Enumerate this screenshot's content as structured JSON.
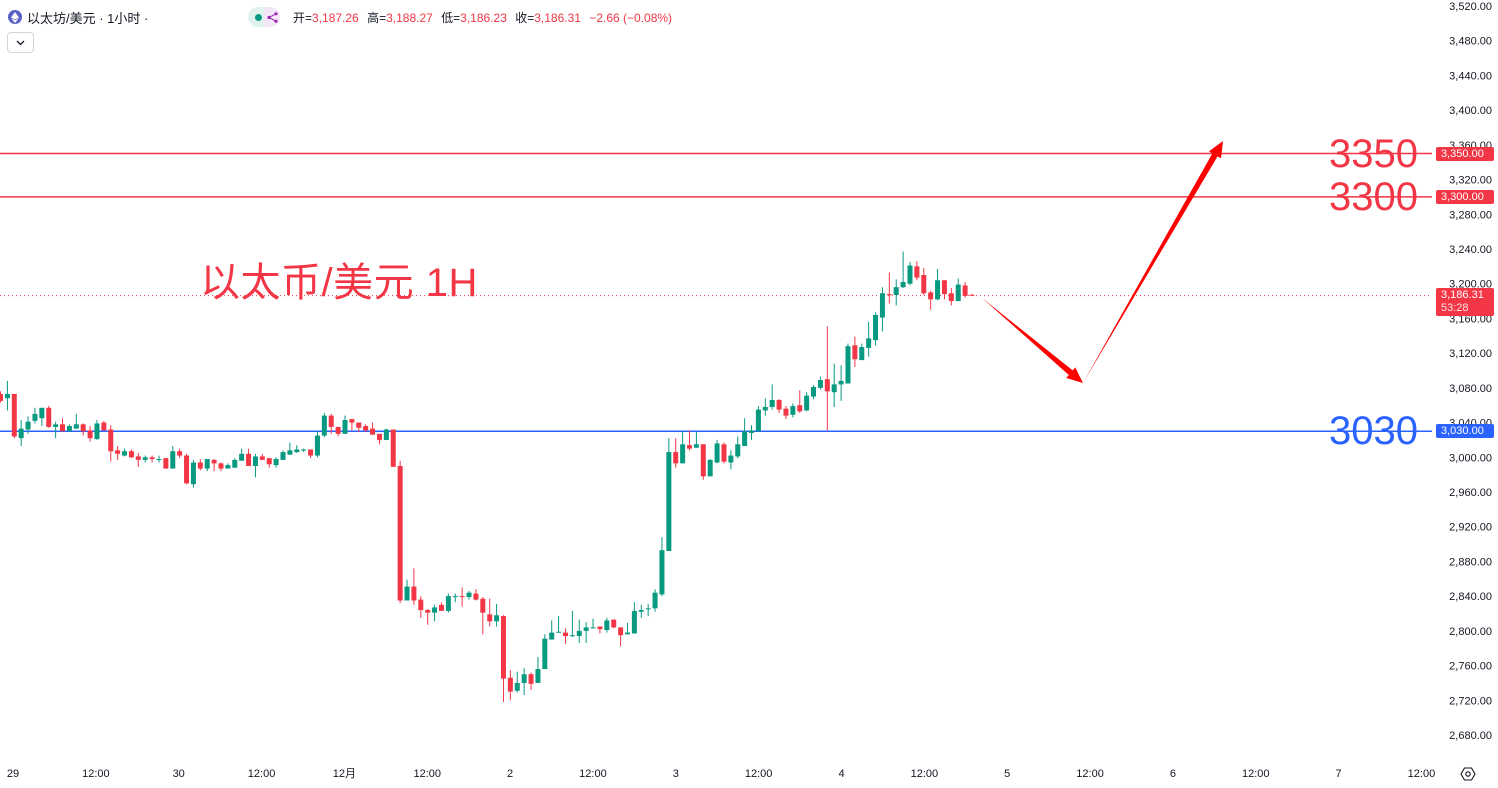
{
  "header": {
    "symbol_title": "以太坊/美元 · 1小时 ·",
    "icon": "ethereum-icon",
    "ohlc": {
      "open_label": "开=",
      "open": "3,187.26",
      "high_label": "高=",
      "high": "3,188.27",
      "low_label": "低=",
      "low": "3,186.23",
      "close_label": "收=",
      "close": "3,186.31",
      "change": "−2.66 (−0.08%)"
    },
    "dropdown_icon": "chevron-down-icon"
  },
  "annotation_title": "以太币/美元 1H",
  "levels": [
    {
      "price": 3350,
      "label": "3350",
      "tag": "3,350.00",
      "color": "#f23645"
    },
    {
      "price": 3300,
      "label": "3300",
      "tag": "3,300.00",
      "color": "#f23645"
    },
    {
      "price": 3030,
      "label": "3030",
      "tag": "3,030.00",
      "color": "#2962ff"
    }
  ],
  "current_price": {
    "price": 3186.31,
    "tag": "3,186.31",
    "countdown": "53:28"
  },
  "colors": {
    "up": "#089981",
    "down": "#f23645",
    "arrow": "#ff0000"
  },
  "chart_data": {
    "type": "candlestick",
    "y_axis_ticks": [
      "3,520.00",
      "3,480.00",
      "3,440.00",
      "3,400.00",
      "3,360.00",
      "3,320.00",
      "3,280.00",
      "3,240.00",
      "3,200.00",
      "3,160.00",
      "3,120.00",
      "3,080.00",
      "3,040.00",
      "3,000.00",
      "2,960.00",
      "2,920.00",
      "2,880.00",
      "2,840.00",
      "2,800.00",
      "2,760.00",
      "2,720.00",
      "2,680.00"
    ],
    "ylim": [
      2680,
      3520
    ],
    "x_axis_ticks": [
      "29",
      "12:00",
      "30",
      "12:00",
      "12月",
      "12:00",
      "2",
      "12:00",
      "3",
      "12:00",
      "4",
      "12:00",
      "5",
      "12:00",
      "6",
      "12:00",
      "7",
      "12:00"
    ],
    "interval": "1小时",
    "ohlc": [
      [
        3073,
        3076,
        3063,
        3065
      ],
      [
        3068,
        3088,
        3054,
        3073
      ],
      [
        3073,
        3073,
        3022,
        3024
      ],
      [
        3022,
        3043,
        3013,
        3033
      ],
      [
        3032,
        3047,
        3027,
        3041
      ],
      [
        3042,
        3057,
        3039,
        3050
      ],
      [
        3045,
        3057,
        3036,
        3057
      ],
      [
        3057,
        3059,
        3034,
        3035
      ],
      [
        3035,
        3041,
        3022,
        3038
      ],
      [
        3038,
        3045,
        3030,
        3030
      ],
      [
        3030,
        3038,
        3030,
        3036
      ],
      [
        3033,
        3050,
        3033,
        3038
      ],
      [
        3038,
        3039,
        3025,
        3030
      ],
      [
        3031,
        3036,
        3018,
        3022
      ],
      [
        3021,
        3043,
        3020,
        3039
      ],
      [
        3040,
        3042,
        3031,
        3031
      ],
      [
        3032,
        3037,
        2995,
        3007
      ],
      [
        3008,
        3013,
        2997,
        3004
      ],
      [
        3002,
        3010,
        3001,
        3007
      ],
      [
        3007,
        3009,
        2999,
        3000
      ],
      [
        3001,
        3005,
        2989,
        2997
      ],
      [
        2997,
        3002,
        2994,
        3000
      ],
      [
        3000,
        3002,
        2994,
        2998
      ],
      [
        2997,
        3002,
        2994,
        2998
      ],
      [
        2999,
        2999,
        2987,
        2987
      ],
      [
        2987,
        3013,
        2987,
        3007
      ],
      [
        3007,
        3010,
        2999,
        3002
      ],
      [
        3002,
        3004,
        2969,
        2970
      ],
      [
        2969,
        2997,
        2965,
        2994
      ],
      [
        2994,
        2998,
        2985,
        2987
      ],
      [
        2987,
        2998,
        2984,
        2998
      ],
      [
        2997,
        2998,
        2984,
        2993
      ],
      [
        2993,
        2994,
        2984,
        2987
      ],
      [
        2987,
        2993,
        2987,
        2991
      ],
      [
        2988,
        2999,
        2988,
        2997
      ],
      [
        2996,
        3010,
        2996,
        3004
      ],
      [
        3004,
        3010,
        2990,
        2990
      ],
      [
        2990,
        3004,
        2977,
        3001
      ],
      [
        3001,
        3004,
        2997,
        2997
      ],
      [
        2999,
        2999,
        2988,
        2992
      ],
      [
        2991,
        3000,
        2988,
        2998
      ],
      [
        2997,
        3008,
        2997,
        3006
      ],
      [
        3003,
        3017,
        3003,
        3008
      ],
      [
        3006,
        3014,
        3005,
        3009
      ],
      [
        3008,
        3010,
        3006,
        3009
      ],
      [
        3009,
        3009,
        2999,
        3002
      ],
      [
        3002,
        3030,
        3000,
        3025
      ],
      [
        3025,
        3051,
        3023,
        3048
      ],
      [
        3048,
        3050,
        3027,
        3035
      ],
      [
        3035,
        3035,
        3024,
        3027
      ],
      [
        3027,
        3048,
        3027,
        3043
      ],
      [
        3044,
        3044,
        3031,
        3040
      ],
      [
        3040,
        3040,
        3029,
        3034
      ],
      [
        3036,
        3038,
        3029,
        3031
      ],
      [
        3033,
        3040,
        3026,
        3026
      ],
      [
        3027,
        3027,
        3015,
        3020
      ],
      [
        3020,
        3033,
        3020,
        3032
      ],
      [
        3032,
        3032,
        2989,
        2989
      ],
      [
        2990,
        2996,
        2832,
        2835
      ],
      [
        2835,
        2859,
        2835,
        2851
      ],
      [
        2851,
        2872,
        2830,
        2835
      ],
      [
        2836,
        2840,
        2815,
        2824
      ],
      [
        2824,
        2825,
        2807,
        2821
      ],
      [
        2821,
        2830,
        2811,
        2827
      ],
      [
        2830,
        2833,
        2823,
        2823
      ],
      [
        2823,
        2843,
        2821,
        2840
      ],
      [
        2839,
        2843,
        2833,
        2840
      ],
      [
        2840,
        2850,
        2828,
        2839
      ],
      [
        2839,
        2846,
        2836,
        2844
      ],
      [
        2843,
        2848,
        2835,
        2836
      ],
      [
        2837,
        2839,
        2796,
        2821
      ],
      [
        2819,
        2837,
        2805,
        2811
      ],
      [
        2811,
        2831,
        2805,
        2818
      ],
      [
        2817,
        2818,
        2718,
        2745
      ],
      [
        2746,
        2755,
        2720,
        2730
      ],
      [
        2731,
        2753,
        2729,
        2740
      ],
      [
        2740,
        2757,
        2726,
        2750
      ],
      [
        2750,
        2752,
        2732,
        2739
      ],
      [
        2740,
        2770,
        2740,
        2756
      ],
      [
        2756,
        2796,
        2756,
        2791
      ],
      [
        2790,
        2812,
        2790,
        2798
      ],
      [
        2798,
        2817,
        2798,
        2799
      ],
      [
        2798,
        2803,
        2785,
        2794
      ],
      [
        2794,
        2823,
        2793,
        2795
      ],
      [
        2794,
        2813,
        2786,
        2800
      ],
      [
        2800,
        2810,
        2786,
        2804
      ],
      [
        2803,
        2814,
        2803,
        2804
      ],
      [
        2805,
        2805,
        2797,
        2802
      ],
      [
        2801,
        2815,
        2798,
        2812
      ],
      [
        2813,
        2813,
        2803,
        2804
      ],
      [
        2804,
        2804,
        2782,
        2795
      ],
      [
        2796,
        2809,
        2796,
        2798
      ],
      [
        2797,
        2833,
        2797,
        2823
      ],
      [
        2822,
        2830,
        2815,
        2824
      ],
      [
        2825,
        2831,
        2817,
        2826
      ],
      [
        2826,
        2848,
        2822,
        2844
      ],
      [
        2842,
        2908,
        2840,
        2893
      ],
      [
        2892,
        3022,
        2892,
        3006
      ],
      [
        3006,
        3022,
        2988,
        2993
      ],
      [
        2993,
        3030,
        2993,
        3015
      ],
      [
        3014,
        3031,
        3008,
        3010
      ],
      [
        3011,
        3029,
        3011,
        3015
      ],
      [
        3015,
        3015,
        2974,
        2978
      ],
      [
        2978,
        2998,
        2978,
        2997
      ],
      [
        2994,
        3020,
        2993,
        3016
      ],
      [
        3015,
        3017,
        2993,
        2995
      ],
      [
        2994,
        3008,
        2986,
        3002
      ],
      [
        3001,
        3024,
        2999,
        3015
      ],
      [
        3013,
        3045,
        3013,
        3030
      ],
      [
        3028,
        3037,
        3020,
        3031
      ],
      [
        3030,
        3059,
        3030,
        3055
      ],
      [
        3054,
        3068,
        3048,
        3058
      ],
      [
        3058,
        3084,
        3055,
        3066
      ],
      [
        3066,
        3067,
        3051,
        3055
      ],
      [
        3056,
        3059,
        3044,
        3048
      ],
      [
        3049,
        3062,
        3046,
        3059
      ],
      [
        3060,
        3077,
        3051,
        3053
      ],
      [
        3054,
        3075,
        3053,
        3071
      ],
      [
        3070,
        3083,
        3067,
        3081
      ],
      [
        3080,
        3093,
        3078,
        3089
      ],
      [
        3090,
        3151,
        3031,
        3076
      ],
      [
        3075,
        3108,
        3058,
        3084
      ],
      [
        3084,
        3106,
        3065,
        3088
      ],
      [
        3085,
        3131,
        3085,
        3128
      ],
      [
        3129,
        3139,
        3104,
        3113
      ],
      [
        3112,
        3131,
        3112,
        3127
      ],
      [
        3126,
        3156,
        3116,
        3137
      ],
      [
        3135,
        3167,
        3129,
        3164
      ],
      [
        3161,
        3196,
        3145,
        3189
      ],
      [
        3188,
        3213,
        3177,
        3187
      ],
      [
        3187,
        3205,
        3175,
        3196
      ],
      [
        3196,
        3237,
        3195,
        3202
      ],
      [
        3200,
        3225,
        3198,
        3221
      ],
      [
        3220,
        3226,
        3204,
        3207
      ],
      [
        3210,
        3218,
        3187,
        3189
      ],
      [
        3190,
        3192,
        3170,
        3182
      ],
      [
        3182,
        3217,
        3181,
        3204
      ],
      [
        3204,
        3204,
        3182,
        3188
      ],
      [
        3189,
        3195,
        3175,
        3180
      ],
      [
        3180,
        3206,
        3180,
        3199
      ],
      [
        3198,
        3202,
        3184,
        3186
      ],
      [
        3187.26,
        3188.27,
        3186.23,
        3186.31
      ]
    ]
  },
  "settings_icon": "gear-icon"
}
